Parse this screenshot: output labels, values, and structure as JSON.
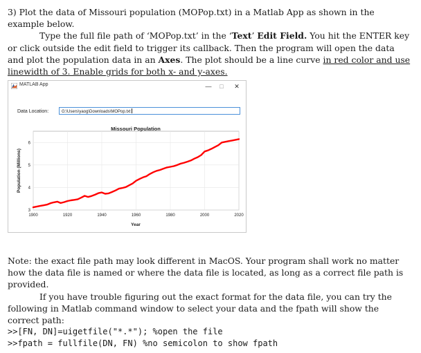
{
  "question": {
    "line1": "3) Plot the data of Missouri population (MOPop.txt) in a Matlab App as shown in the",
    "line2": "example below.",
    "line3a": "Type the full file path of ‘MOPop.txt’ in the ‘",
    "line3b": "Text",
    "line3c": "’ ",
    "line3d": "Edit Field.",
    "line3e": " You hit the ENTER key",
    "line4": "or click outside the edit field to trigger its callback. Then the program will open the data",
    "line5a": "and plot the population data in an ",
    "line5b": "Axes",
    "line5c": ". The plot should be a line curve ",
    "line5d": "in red color and use",
    "line6": "linewidth of 3. Enable grids for both x- and y-axes."
  },
  "app": {
    "title": "MATLAB App",
    "minimize": "—",
    "maximize": "□",
    "close": "✕",
    "location_label": "Data Location:",
    "path_value": "G:\\Users\\yaog\\Downloads\\MOPop.txt",
    "icon": "matlab-icon"
  },
  "chart_data": {
    "type": "line",
    "title": "Missouri Population",
    "xlabel": "Year",
    "ylabel": "Population (Millions)",
    "xlim": [
      1900,
      2020
    ],
    "ylim": [
      3,
      6.5
    ],
    "xticks": [
      1900,
      1920,
      1940,
      1960,
      1980,
      2000,
      2020
    ],
    "yticks": [
      3,
      4,
      5,
      6
    ],
    "grid": true,
    "line_color": "#ff0000",
    "line_width": 3,
    "x": [
      1900,
      1902,
      1904,
      1906,
      1908,
      1910,
      1912,
      1914,
      1916,
      1918,
      1920,
      1922,
      1924,
      1926,
      1928,
      1930,
      1932,
      1934,
      1936,
      1938,
      1940,
      1942,
      1944,
      1946,
      1948,
      1950,
      1952,
      1954,
      1956,
      1958,
      1960,
      1962,
      1964,
      1966,
      1968,
      1970,
      1972,
      1974,
      1976,
      1978,
      1980,
      1982,
      1984,
      1986,
      1988,
      1990,
      1992,
      1994,
      1996,
      1998,
      2000,
      2002,
      2004,
      2006,
      2008,
      2010,
      2012,
      2014,
      2016,
      2018,
      2020
    ],
    "y": [
      3.12,
      3.15,
      3.18,
      3.21,
      3.24,
      3.3,
      3.34,
      3.37,
      3.31,
      3.35,
      3.4,
      3.43,
      3.45,
      3.48,
      3.55,
      3.63,
      3.58,
      3.62,
      3.68,
      3.75,
      3.78,
      3.72,
      3.74,
      3.8,
      3.87,
      3.95,
      3.98,
      4.02,
      4.1,
      4.18,
      4.3,
      4.38,
      4.45,
      4.5,
      4.6,
      4.68,
      4.74,
      4.78,
      4.84,
      4.89,
      4.92,
      4.95,
      5.0,
      5.06,
      5.1,
      5.15,
      5.2,
      5.28,
      5.35,
      5.44,
      5.6,
      5.65,
      5.72,
      5.8,
      5.88,
      6.0,
      6.03,
      6.06,
      6.09,
      6.12,
      6.15
    ]
  },
  "note": {
    "line1": "Note: the exact file path may look different in MacOS. Your program shall work no matter",
    "line2": "how the data file is named or where the data file is located, as long as a correct file path is",
    "line3": "provided.",
    "line4": "If you have trouble figuring out the exact format for the data file, you can try the",
    "line5": "following in Matlab command window to select your data and the fpath will show the",
    "line6": "correct path:",
    "code1": ">>[FN, DN]=uigetfile(\"*.*\"); %open the file",
    "code2": ">>fpath = fullfile(DN, FN) %no semicolon to show fpath"
  }
}
